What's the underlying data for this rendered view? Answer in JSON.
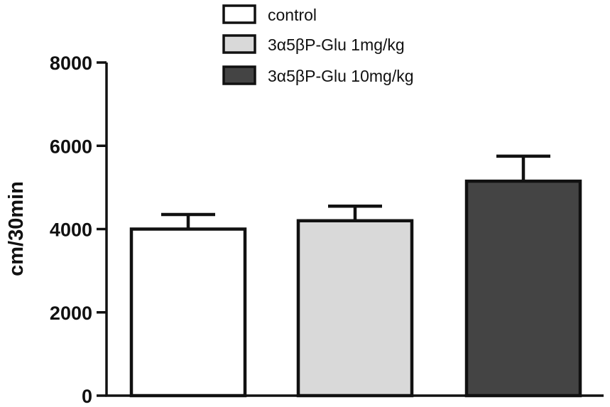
{
  "chart_data": {
    "type": "bar",
    "categories": [
      "control",
      "3α5βP-Glu 1mg/kg",
      "3α5βP-Glu 10mg/kg"
    ],
    "values": [
      4000,
      4200,
      5150
    ],
    "errors": [
      350,
      350,
      600
    ],
    "colors": [
      "#ffffff",
      "#d9d9d9",
      "#444444"
    ],
    "title": "",
    "xlabel": "",
    "ylabel": "cm/30min",
    "ylim": [
      0,
      8000
    ],
    "yticks": [
      0,
      2000,
      4000,
      6000,
      8000
    ],
    "legend": {
      "placement": "top-center",
      "entries": [
        "control",
        "3α5βP-Glu 1mg/kg",
        "3α5βP-Glu 10mg/kg"
      ]
    },
    "grid": false
  }
}
